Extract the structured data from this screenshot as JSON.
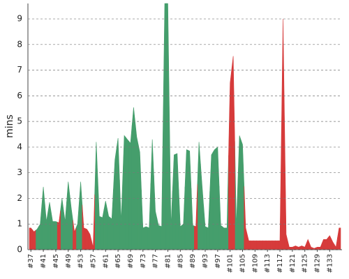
{
  "chart_data": {
    "type": "area",
    "y_label": "mins",
    "categories": [
      "#37",
      null,
      null,
      null,
      "#41",
      null,
      null,
      null,
      "#45",
      null,
      null,
      null,
      "#49",
      null,
      null,
      null,
      "#53",
      null,
      null,
      null,
      "#57",
      null,
      null,
      null,
      "#61",
      null,
      null,
      null,
      "#65",
      null,
      null,
      null,
      "#69",
      null,
      null,
      null,
      "#73",
      null,
      null,
      null,
      "#77",
      null,
      null,
      null,
      "#81",
      null,
      null,
      null,
      "#85",
      null,
      null,
      null,
      "#89",
      null,
      null,
      null,
      "#93",
      null,
      null,
      null,
      "#97",
      null,
      null,
      null,
      "#101",
      null,
      null,
      null,
      "#105",
      null,
      null,
      null,
      "#109",
      null,
      null,
      null,
      "#113",
      null,
      null,
      null,
      "#117",
      null,
      null,
      null,
      "#121",
      null,
      null,
      null,
      "#125",
      null,
      null,
      null,
      "#129",
      null,
      null,
      null,
      "#133",
      null,
      null,
      null
    ],
    "series": [
      {
        "color": "#459e6c",
        "values": [
          null,
          null,
          0.8,
          1.0,
          2.45,
          1.1,
          1.85,
          1.1,
          1.1,
          null,
          2.0,
          1.1,
          2.65,
          1.6,
          null,
          1.0,
          2.65,
          null,
          null,
          null,
          null,
          4.2,
          1.3,
          1.25,
          1.9,
          1.3,
          1.2,
          3.5,
          4.35,
          1.1,
          4.45,
          4.3,
          4.15,
          5.55,
          4.4,
          3.8,
          0.85,
          0.9,
          0.85,
          4.3,
          1.5,
          0.95,
          0.9,
          9.6,
          9.6,
          0.9,
          3.7,
          3.75,
          0.9,
          1.0,
          3.9,
          3.85,
          0.95,
          null,
          4.2,
          2.5,
          0.9,
          0.85,
          3.7,
          3.9,
          4.0,
          0.95,
          0.85,
          0.85,
          null,
          null,
          0.9,
          4.45,
          4.1,
          null,
          null,
          null,
          null,
          null,
          null,
          null,
          null,
          null,
          null,
          null,
          null,
          null,
          null,
          null,
          null,
          null,
          null,
          null,
          null,
          null,
          null,
          null,
          null,
          null,
          null,
          null,
          null,
          null,
          null,
          null
        ]
      },
      {
        "color": "#d63b3b",
        "values": [
          0.85,
          0.7,
          null,
          null,
          null,
          null,
          null,
          null,
          null,
          1.05,
          null,
          null,
          null,
          null,
          0.7,
          null,
          null,
          0.85,
          0.8,
          0.6,
          0.1,
          null,
          null,
          null,
          null,
          null,
          null,
          null,
          null,
          null,
          null,
          null,
          null,
          null,
          null,
          null,
          null,
          null,
          null,
          null,
          null,
          null,
          null,
          null,
          null,
          null,
          null,
          null,
          null,
          null,
          null,
          null,
          null,
          0.9,
          null,
          null,
          null,
          null,
          null,
          null,
          null,
          null,
          null,
          null,
          6.5,
          7.55,
          null,
          null,
          null,
          0.85,
          0.35,
          0.35,
          0.35,
          0.35,
          0.35,
          0.35,
          0.35,
          0.35,
          0.35,
          0.35,
          0.35,
          9.0,
          0.6,
          0.1,
          0.1,
          0.15,
          0.1,
          0.15,
          0.1,
          0.4,
          0.1,
          0.05,
          0.1,
          0.1,
          0.4,
          0.4,
          0.55,
          0.3,
          0.1,
          0.85
        ]
      }
    ],
    "ylim": [
      0,
      9.6
    ],
    "yticks": [
      0,
      1,
      2,
      3,
      4,
      5,
      6,
      7,
      8,
      9
    ],
    "grid": true
  }
}
